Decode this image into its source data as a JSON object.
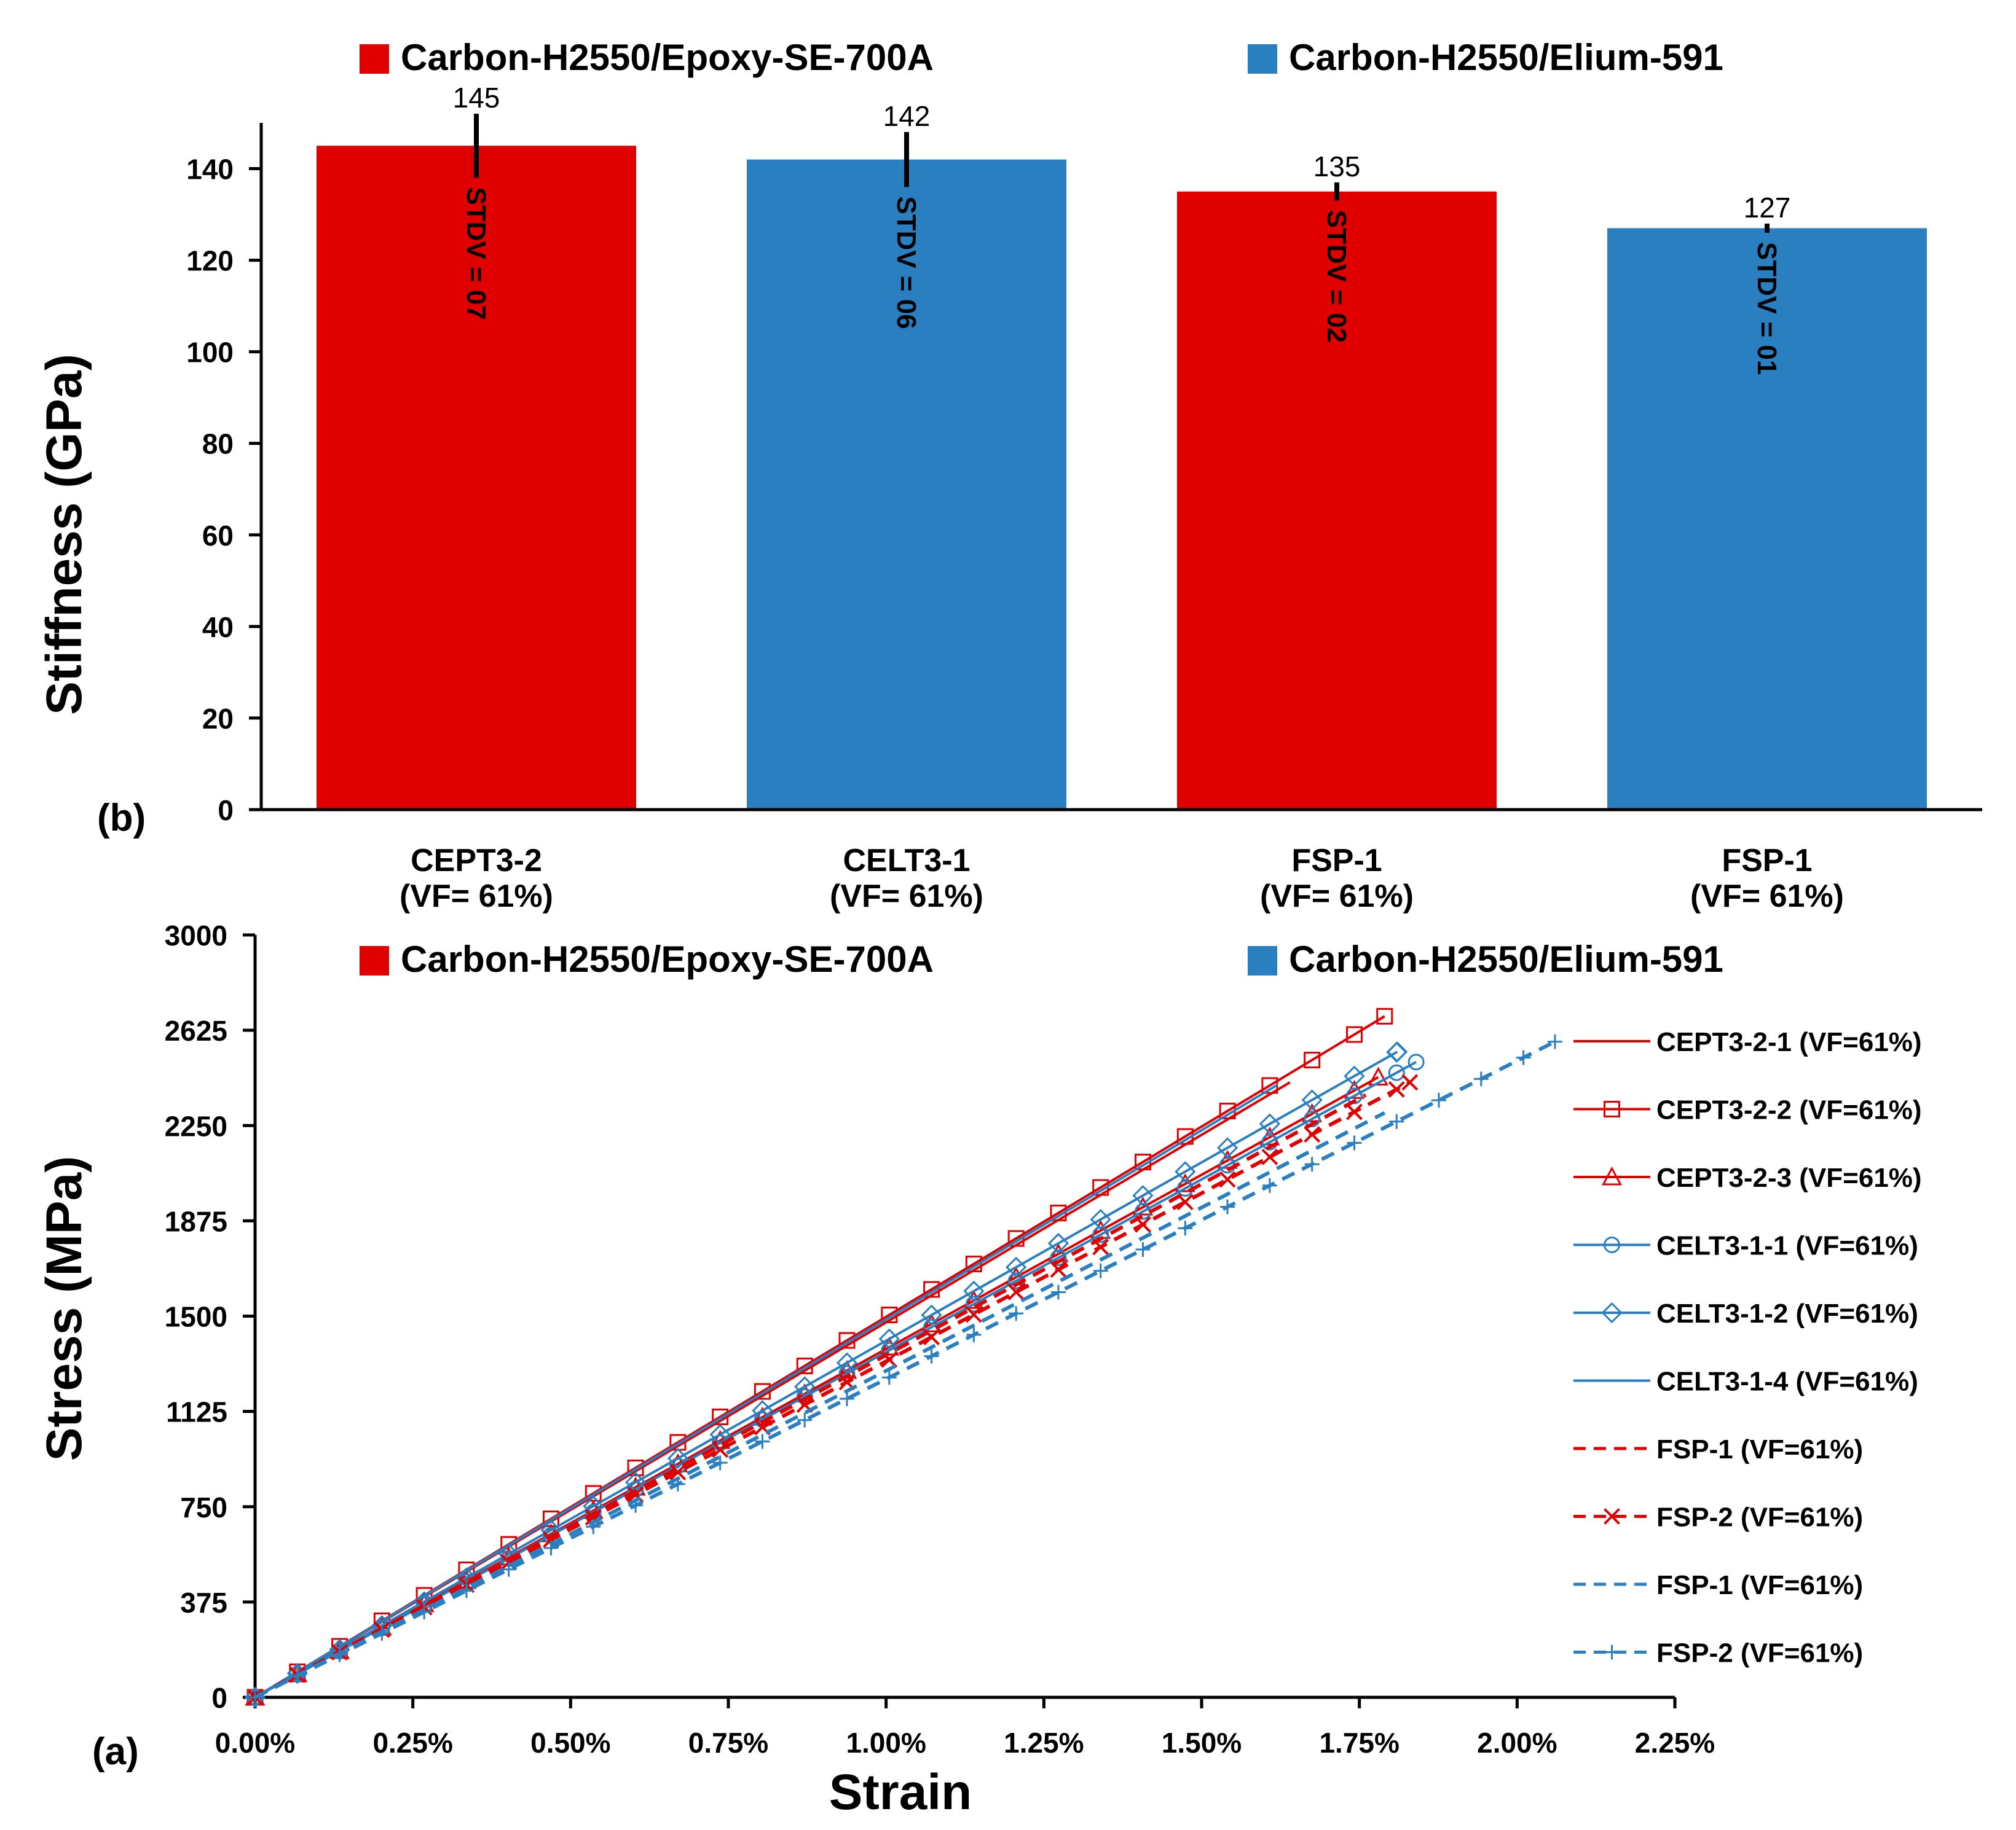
{
  "colors": {
    "epoxy": "#e00000",
    "elium": "#2a7fc1",
    "axis": "#000000"
  },
  "chart_data": [
    {
      "panel": "(b)",
      "type": "bar",
      "ylabel": "Stiffness (GPa)",
      "ylim": [
        0,
        150
      ],
      "yticks": [
        0,
        20,
        40,
        60,
        80,
        100,
        120,
        140
      ],
      "legend": [
        {
          "name": "Carbon-H2550/Epoxy-SE-700A",
          "color": "#e00000"
        },
        {
          "name": "Carbon-H2550/Elium-591",
          "color": "#2a7fc1"
        }
      ],
      "bars": [
        {
          "label": "CEPT3-2",
          "sublabel": "(VF= 61%)",
          "value": 145,
          "value_label": "145",
          "stdev": 7,
          "stdev_label": "STDV = 07",
          "color": "#e00000"
        },
        {
          "label": "CELT3-1",
          "sublabel": "(VF= 61%)",
          "value": 142,
          "value_label": "142",
          "stdev": 6,
          "stdev_label": "STDV = 06",
          "color": "#2a7fc1"
        },
        {
          "label": "FSP-1",
          "sublabel": "(VF= 61%)",
          "value": 135,
          "value_label": "135",
          "stdev": 2,
          "stdev_label": "STDV = 02",
          "color": "#e00000"
        },
        {
          "label": "FSP-1",
          "sublabel": "(VF= 61%)",
          "value": 127,
          "value_label": "127",
          "stdev": 1,
          "stdev_label": "STDV = 01",
          "color": "#2a7fc1"
        }
      ]
    },
    {
      "panel": "(a)",
      "type": "line",
      "xlabel": "Strain",
      "ylabel": "Stress (MPa)",
      "xlim": [
        0,
        2.25
      ],
      "ylim": [
        0,
        3000
      ],
      "xticks": [
        "0.00%",
        "0.25%",
        "0.50%",
        "0.75%",
        "1.00%",
        "1.25%",
        "1.50%",
        "1.75%",
        "2.00%",
        "2.25%"
      ],
      "yticks": [
        "0",
        "375",
        "750",
        "1125",
        "1500",
        "1875",
        "2250",
        "2625",
        "3000"
      ],
      "legend_top": [
        {
          "name": "Carbon-H2550/Epoxy-SE-700A",
          "color": "#e00000"
        },
        {
          "name": "Carbon-H2550/Elium-591",
          "color": "#2a7fc1"
        }
      ],
      "series": [
        {
          "name": "CEPT3-2-1 (VF=61%)",
          "color": "#e00000",
          "dash": "solid",
          "marker": "none",
          "x_end": 1.64,
          "y_end": 2420
        },
        {
          "name": "CEPT3-2-2 (VF=61%)",
          "color": "#e00000",
          "dash": "solid",
          "marker": "square",
          "x_end": 1.79,
          "y_end": 2680
        },
        {
          "name": "CEPT3-2-3 (VF=61%)",
          "color": "#e00000",
          "dash": "solid",
          "marker": "triangle",
          "x_end": 1.78,
          "y_end": 2440
        },
        {
          "name": "CELT3-1-1 (VF=61%)",
          "color": "#2a7fc1",
          "dash": "solid",
          "marker": "circle",
          "x_end": 1.84,
          "y_end": 2500
        },
        {
          "name": "CELT3-1-2 (VF=61%)",
          "color": "#2a7fc1",
          "dash": "solid",
          "marker": "diamond",
          "x_end": 1.81,
          "y_end": 2540
        },
        {
          "name": "CELT3-1-4 (VF=61%)",
          "color": "#2a7fc1",
          "dash": "solid",
          "marker": "none",
          "x_end": 1.62,
          "y_end": 2410
        },
        {
          "name": "FSP-1 (VF=61%)",
          "color": "#e00000",
          "dash": "dashed",
          "marker": "none",
          "x_end": 1.76,
          "y_end": 2370
        },
        {
          "name": "FSP-2 (VF=61%)",
          "color": "#e00000",
          "dash": "dashed",
          "marker": "x",
          "x_end": 1.83,
          "y_end": 2420
        },
        {
          "name": "FSP-1 (VF=61%)",
          "color": "#2a7fc1",
          "dash": "dashed",
          "marker": "none",
          "x_end": 1.79,
          "y_end": 2300
        },
        {
          "name": "FSP-2 (VF=61%)",
          "color": "#2a7fc1",
          "dash": "dashed",
          "marker": "plus",
          "x_end": 2.06,
          "y_end": 2580
        }
      ]
    }
  ]
}
